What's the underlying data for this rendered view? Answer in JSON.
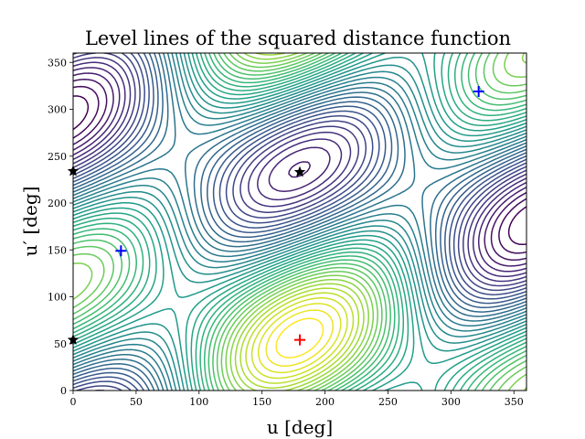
{
  "chart_data": {
    "type": "contour",
    "title": "Level lines of the squared distance function",
    "xlabel": "u [deg]",
    "ylabel": "u′ [deg]",
    "xlim": [
      0,
      360
    ],
    "ylim": [
      0,
      360
    ],
    "xticks": [
      0,
      50,
      100,
      150,
      200,
      250,
      300,
      350
    ],
    "yticks": [
      0,
      50,
      100,
      150,
      200,
      250,
      300,
      350
    ],
    "grid": false,
    "colormap": "viridis",
    "n_levels": 40,
    "markers": [
      {
        "kind": "maximum",
        "symbol": "+",
        "color": "#ff0000",
        "x": 180,
        "y": 54
      },
      {
        "kind": "minimum",
        "symbol": "+",
        "color": "#0000ff",
        "x": 38,
        "y": 149
      },
      {
        "kind": "minimum",
        "symbol": "+",
        "color": "#0000ff",
        "x": 322,
        "y": 319
      },
      {
        "kind": "saddle",
        "symbol": "star",
        "color": "#000000",
        "x": 180,
        "y": 233
      },
      {
        "kind": "saddle",
        "symbol": "star",
        "color": "#000000",
        "x": 0,
        "y": 234
      },
      {
        "kind": "saddle",
        "symbol": "star",
        "color": "#000000",
        "x": 0,
        "y": 54
      }
    ]
  }
}
